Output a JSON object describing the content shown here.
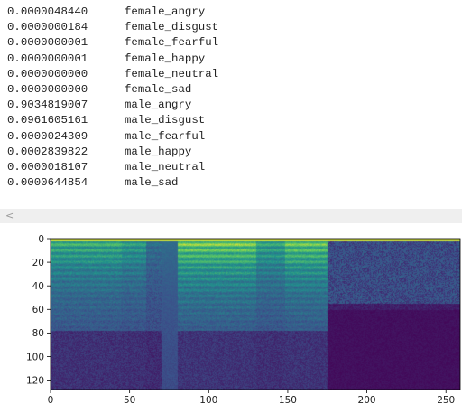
{
  "output": {
    "rows": [
      {
        "value": "0.0000048440",
        "label": "female_angry"
      },
      {
        "value": "0.0000000184",
        "label": "female_disgust"
      },
      {
        "value": "0.0000000001",
        "label": "female_fearful"
      },
      {
        "value": "0.0000000001",
        "label": "female_happy"
      },
      {
        "value": "0.0000000000",
        "label": "female_neutral"
      },
      {
        "value": "0.0000000000",
        "label": "female_sad"
      },
      {
        "value": "0.9034819007",
        "label": "male_angry"
      },
      {
        "value": "0.0961605161",
        "label": "male_disgust"
      },
      {
        "value": "0.0000024309",
        "label": "male_fearful"
      },
      {
        "value": "0.0002839822",
        "label": "male_happy"
      },
      {
        "value": "0.0000018107",
        "label": "male_neutral"
      },
      {
        "value": "0.0000644854",
        "label": "male_sad"
      }
    ]
  },
  "scrollbar": {
    "left_icon": "chevron-left-icon",
    "glyph": "<"
  },
  "chart_data": {
    "type": "heatmap",
    "colormap": "viridis",
    "x_ticks": [
      "0",
      "50",
      "100",
      "150",
      "200",
      "250"
    ],
    "y_ticks": [
      "0",
      "20",
      "40",
      "60",
      "80",
      "100",
      "120"
    ],
    "xlim": [
      0,
      259
    ],
    "ylim": [
      128,
      0
    ]
  }
}
